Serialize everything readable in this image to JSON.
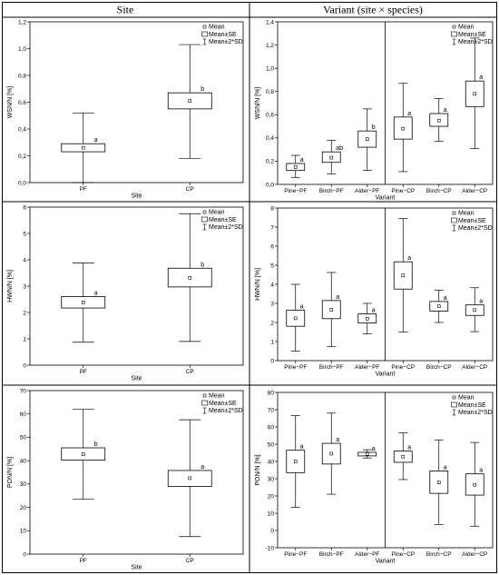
{
  "headers": {
    "left": "Site",
    "right": "Variant (site × species)"
  },
  "legend": {
    "mean": "Mean",
    "se": "Mean±SE",
    "sd": "Mean±2*SD"
  },
  "chart_data": [
    {
      "type": "box",
      "xlabel": "Site",
      "ylabel": "WSN/N [%]",
      "ylim": [
        0,
        1.2
      ],
      "yticks": [
        "0.0",
        "0.2",
        "0.4",
        "0.6",
        "0.8",
        "1.0",
        "1.2"
      ],
      "categories": [
        "PF",
        "CP"
      ],
      "boxes": [
        {
          "mean": 0.26,
          "se_low": 0.23,
          "se_high": 0.29,
          "sd_low": 0.0,
          "sd_high": 0.52,
          "letter": "a"
        },
        {
          "mean": 0.61,
          "se_low": 0.55,
          "se_high": 0.67,
          "sd_low": 0.18,
          "sd_high": 1.03,
          "letter": "b"
        }
      ]
    },
    {
      "type": "box",
      "xlabel": "Variant",
      "ylabel": "WSN/N [%]",
      "ylim": [
        0,
        1.4
      ],
      "yticks": [
        "0.0",
        "0.2",
        "0.4",
        "0.6",
        "0.8",
        "1.0",
        "1.2",
        "1.4"
      ],
      "categories": [
        "Pine−PF",
        "Birch−PF",
        "Alder−PF",
        "Pine−CP",
        "Birch−CP",
        "Alder−CP"
      ],
      "boxes": [
        {
          "mean": 0.15,
          "se_low": 0.12,
          "se_high": 0.18,
          "sd_low": 0.06,
          "sd_high": 0.25,
          "letter": "a"
        },
        {
          "mean": 0.23,
          "se_low": 0.19,
          "se_high": 0.28,
          "sd_low": 0.09,
          "sd_high": 0.38,
          "letter": "ab"
        },
        {
          "mean": 0.39,
          "se_low": 0.32,
          "se_high": 0.46,
          "sd_low": 0.12,
          "sd_high": 0.65,
          "letter": "b"
        },
        {
          "mean": 0.48,
          "se_low": 0.39,
          "se_high": 0.58,
          "sd_low": 0.11,
          "sd_high": 0.87,
          "letter": "a"
        },
        {
          "mean": 0.55,
          "se_low": 0.5,
          "se_high": 0.61,
          "sd_low": 0.37,
          "sd_high": 0.74,
          "letter": "a"
        },
        {
          "mean": 0.78,
          "se_low": 0.67,
          "se_high": 0.89,
          "sd_low": 0.31,
          "sd_high": 1.26,
          "letter": "a"
        }
      ]
    },
    {
      "type": "box",
      "xlabel": "Site",
      "ylabel": "HWN/N [%]",
      "ylim": [
        0,
        6
      ],
      "yticks": [
        "0",
        "1",
        "2",
        "3",
        "4",
        "5",
        "6"
      ],
      "categories": [
        "PF",
        "CP"
      ],
      "boxes": [
        {
          "mean": 2.38,
          "se_low": 2.17,
          "se_high": 2.6,
          "sd_low": 0.87,
          "sd_high": 3.88,
          "letter": "a"
        },
        {
          "mean": 3.32,
          "se_low": 2.97,
          "se_high": 3.68,
          "sd_low": 0.9,
          "sd_high": 5.75,
          "letter": "b"
        }
      ]
    },
    {
      "type": "box",
      "xlabel": "Variant",
      "ylabel": "HWN/N [%]",
      "ylim": [
        0,
        8
      ],
      "yticks": [
        "0",
        "1",
        "2",
        "3",
        "4",
        "5",
        "6",
        "7",
        "8"
      ],
      "categories": [
        "Pine−PF",
        "Birch−PF",
        "Alder−PF",
        "Pine−CP",
        "Birch−CP",
        "Alder−CP"
      ],
      "boxes": [
        {
          "mean": 2.22,
          "se_low": 1.8,
          "se_high": 2.65,
          "sd_low": 0.5,
          "sd_high": 4.0,
          "letter": "a"
        },
        {
          "mean": 2.67,
          "se_low": 2.2,
          "se_high": 3.15,
          "sd_low": 0.73,
          "sd_high": 4.62,
          "letter": "a"
        },
        {
          "mean": 2.2,
          "se_low": 1.97,
          "se_high": 2.45,
          "sd_low": 1.4,
          "sd_high": 3.0,
          "letter": "a"
        },
        {
          "mean": 4.47,
          "se_low": 3.75,
          "se_high": 5.18,
          "sd_low": 1.5,
          "sd_high": 7.45,
          "letter": "a"
        },
        {
          "mean": 2.85,
          "se_low": 2.6,
          "se_high": 3.1,
          "sd_low": 2.0,
          "sd_high": 3.7,
          "letter": "a"
        },
        {
          "mean": 2.65,
          "se_low": 2.37,
          "se_high": 2.92,
          "sd_low": 1.52,
          "sd_high": 3.82,
          "letter": "a"
        }
      ]
    },
    {
      "type": "box",
      "xlabel": "Site",
      "ylabel": "PON/N [%]",
      "ylim": [
        0,
        70
      ],
      "yticks": [
        "0",
        "10",
        "20",
        "30",
        "40",
        "50",
        "60",
        "70"
      ],
      "categories": [
        "PF",
        "CP"
      ],
      "boxes": [
        {
          "mean": 42.8,
          "se_low": 40.2,
          "se_high": 45.5,
          "sd_low": 23.5,
          "sd_high": 62.0,
          "letter": "b"
        },
        {
          "mean": 32.5,
          "se_low": 29.0,
          "se_high": 35.8,
          "sd_low": 7.5,
          "sd_high": 57.5,
          "letter": "a"
        }
      ]
    },
    {
      "type": "box",
      "xlabel": "Variant",
      "ylabel": "PON/N [%]",
      "ylim": [
        -10,
        80
      ],
      "yticks": [
        "-10",
        "0",
        "10",
        "20",
        "30",
        "40",
        "50",
        "60",
        "70",
        "80"
      ],
      "categories": [
        "Pine−PF",
        "Birch−PF",
        "Alder−PF",
        "Pine−CP",
        "Birch−CP",
        "Alder−CP"
      ],
      "boxes": [
        {
          "mean": 40.0,
          "se_low": 33.5,
          "se_high": 46.5,
          "sd_low": 13.5,
          "sd_high": 66.5,
          "letter": "a"
        },
        {
          "mean": 44.5,
          "se_low": 38.5,
          "se_high": 50.5,
          "sd_low": 21.0,
          "sd_high": 68.0,
          "letter": "a"
        },
        {
          "mean": 44.3,
          "se_low": 43.2,
          "se_high": 45.3,
          "sd_low": 42.0,
          "sd_high": 46.8,
          "letter": "a"
        },
        {
          "mean": 42.8,
          "se_low": 39.5,
          "se_high": 46.0,
          "sd_low": 29.5,
          "sd_high": 56.5,
          "letter": "a"
        },
        {
          "mean": 27.8,
          "se_low": 21.5,
          "se_high": 34.5,
          "sd_low": 3.5,
          "sd_high": 52.5,
          "letter": "a"
        },
        {
          "mean": 26.5,
          "se_low": 20.5,
          "se_high": 32.8,
          "sd_low": 2.5,
          "sd_high": 51.0,
          "letter": "a"
        }
      ]
    }
  ]
}
